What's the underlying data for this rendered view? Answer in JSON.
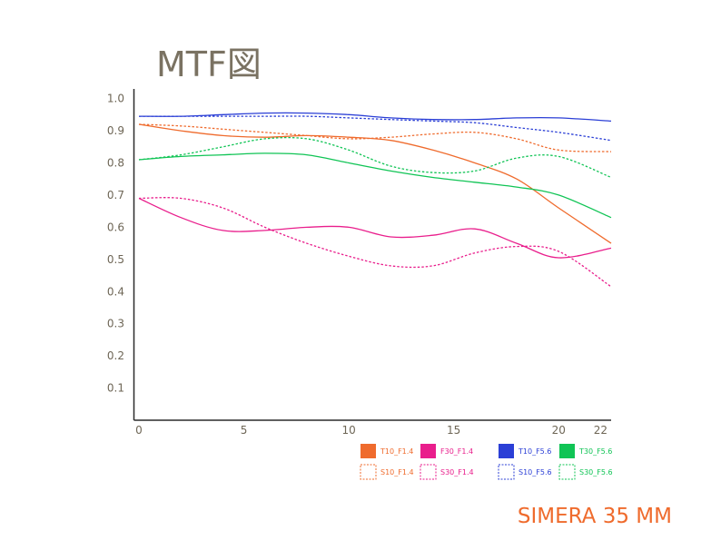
{
  "chart_data": {
    "type": "line",
    "title": "MTF図",
    "brand": "SIMERA 35 MM",
    "xlim": [
      0,
      22.5
    ],
    "ylim": [
      0,
      1.03
    ],
    "xticks": [
      0,
      5,
      10,
      15,
      20,
      22
    ],
    "yticks": [
      0.1,
      0.2,
      0.3,
      0.4,
      0.5,
      0.6,
      0.7,
      0.8,
      0.9,
      1.0
    ],
    "ytick_labels": [
      "0.1",
      "0.2",
      "0.3",
      "0.4",
      "0.5",
      "0.6",
      "0.7",
      "0.8",
      "0.9",
      "1.0"
    ],
    "grid": false,
    "legend_position": "bottom-right",
    "series": [
      {
        "name": "T10_F1.4",
        "color": "#ef6b2d",
        "dashed": false,
        "x": [
          0,
          2,
          4,
          6,
          8,
          10,
          12,
          14,
          16,
          18,
          20,
          22.5
        ],
        "y": [
          0.92,
          0.9,
          0.885,
          0.88,
          0.885,
          0.88,
          0.87,
          0.84,
          0.8,
          0.75,
          0.66,
          0.55
        ]
      },
      {
        "name": "S10_F1.4",
        "color": "#ef6b2d",
        "dashed": true,
        "x": [
          0,
          2,
          4,
          6,
          8,
          10,
          12,
          14,
          16,
          18,
          20,
          22.5
        ],
        "y": [
          0.92,
          0.915,
          0.905,
          0.895,
          0.885,
          0.875,
          0.88,
          0.89,
          0.895,
          0.875,
          0.84,
          0.835
        ]
      },
      {
        "name": "F30_F1.4",
        "color": "#e91e8c",
        "dashed": false,
        "x": [
          0,
          2,
          4,
          6,
          8,
          10,
          12,
          14,
          16,
          18,
          20,
          22.5
        ],
        "y": [
          0.69,
          0.63,
          0.59,
          0.59,
          0.6,
          0.6,
          0.57,
          0.575,
          0.595,
          0.55,
          0.505,
          0.535
        ]
      },
      {
        "name": "S30_F1.4",
        "color": "#e91e8c",
        "dashed": true,
        "x": [
          0,
          2,
          4,
          6,
          8,
          10,
          12,
          14,
          16,
          18,
          20,
          22.5
        ],
        "y": [
          0.69,
          0.69,
          0.66,
          0.6,
          0.55,
          0.51,
          0.48,
          0.48,
          0.52,
          0.54,
          0.525,
          0.415
        ]
      },
      {
        "name": "T10_F5.6",
        "color": "#2b3fd6",
        "dashed": false,
        "x": [
          0,
          2,
          4,
          6,
          8,
          10,
          12,
          14,
          16,
          18,
          20,
          22.5
        ],
        "y": [
          0.945,
          0.945,
          0.95,
          0.955,
          0.955,
          0.95,
          0.94,
          0.935,
          0.935,
          0.94,
          0.94,
          0.93
        ]
      },
      {
        "name": "S10_F5.6",
        "color": "#2b3fd6",
        "dashed": true,
        "x": [
          0,
          2,
          4,
          6,
          8,
          10,
          12,
          14,
          16,
          18,
          20,
          22.5
        ],
        "y": [
          0.945,
          0.945,
          0.945,
          0.945,
          0.945,
          0.94,
          0.935,
          0.93,
          0.925,
          0.91,
          0.895,
          0.87
        ]
      },
      {
        "name": "T30_F5.6",
        "color": "#10c455",
        "dashed": false,
        "x": [
          0,
          2,
          4,
          6,
          8,
          10,
          12,
          14,
          16,
          18,
          20,
          22.5
        ],
        "y": [
          0.81,
          0.82,
          0.825,
          0.83,
          0.825,
          0.8,
          0.775,
          0.755,
          0.74,
          0.725,
          0.7,
          0.63
        ]
      },
      {
        "name": "S30_F5.6",
        "color": "#10c455",
        "dashed": true,
        "x": [
          0,
          2,
          4,
          6,
          8,
          10,
          12,
          14,
          16,
          18,
          20,
          22.5
        ],
        "y": [
          0.81,
          0.825,
          0.85,
          0.875,
          0.875,
          0.84,
          0.79,
          0.77,
          0.775,
          0.815,
          0.82,
          0.755
        ]
      }
    ]
  }
}
